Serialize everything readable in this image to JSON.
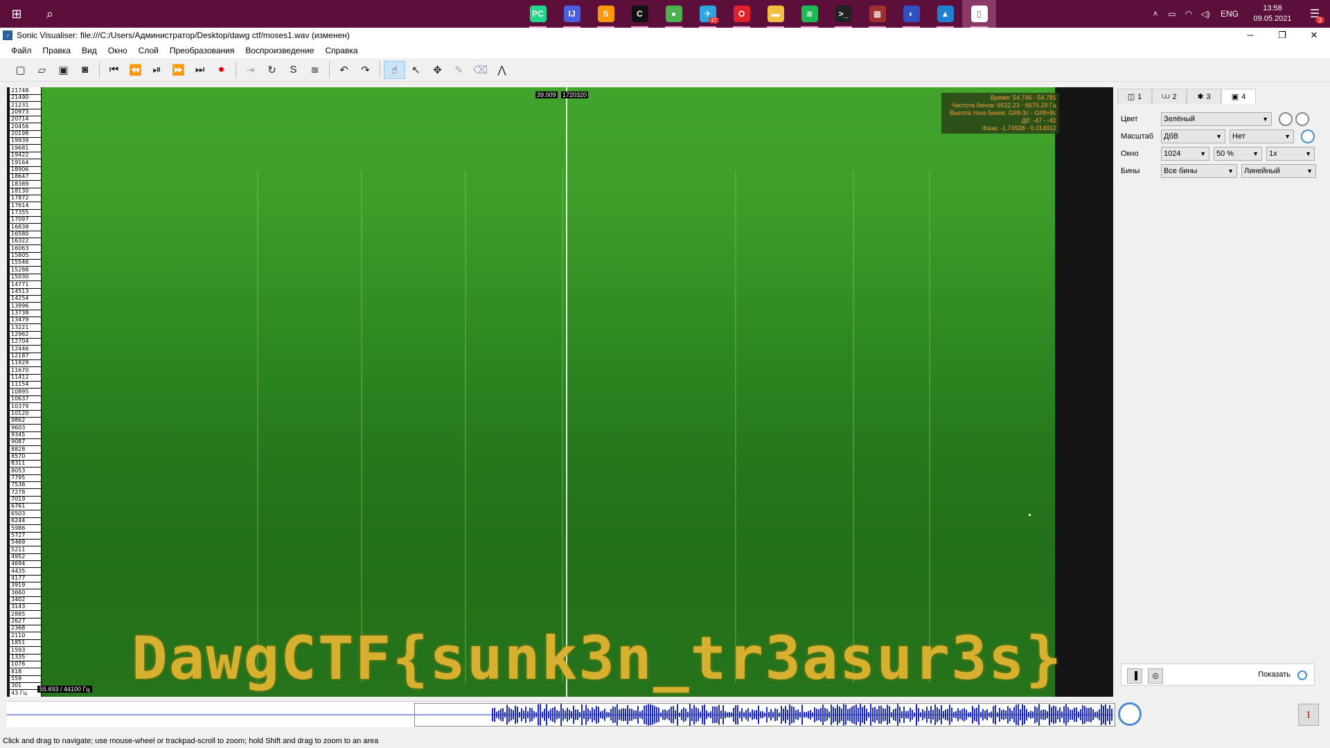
{
  "taskbar": {
    "apps": [
      {
        "name": "pycharm",
        "glyph": "PC",
        "color": "#21d789",
        "badge": ""
      },
      {
        "name": "intellij",
        "glyph": "IJ",
        "color": "#4a5fe0",
        "badge": ""
      },
      {
        "name": "sublime",
        "glyph": "S",
        "color": "#ff9800",
        "badge": ""
      },
      {
        "name": "c-app",
        "glyph": "C",
        "color": "#111111",
        "badge": ""
      },
      {
        "name": "chrome",
        "glyph": "●",
        "color": "#4caf50",
        "badge": ""
      },
      {
        "name": "telegram",
        "glyph": "✈",
        "color": "#2ca5e0",
        "badge": "47"
      },
      {
        "name": "opera",
        "glyph": "O",
        "color": "#e0202a",
        "badge": ""
      },
      {
        "name": "explorer",
        "glyph": "▬",
        "color": "#f0c040",
        "badge": ""
      },
      {
        "name": "spotify",
        "glyph": "≋",
        "color": "#1db954",
        "badge": ""
      },
      {
        "name": "terminal",
        "glyph": ">_",
        "color": "#222222",
        "badge": ""
      },
      {
        "name": "winrar",
        "glyph": "▦",
        "color": "#a03030",
        "badge": ""
      },
      {
        "name": "app-round",
        "glyph": "◐",
        "color": "#3050c0",
        "badge": ""
      },
      {
        "name": "photos",
        "glyph": "▲",
        "color": "#2080d0",
        "badge": ""
      },
      {
        "name": "document",
        "glyph": "▯",
        "color": "#ffffff",
        "badge": ""
      }
    ],
    "lang": "ENG",
    "time": "13:58",
    "date": "09.05.2021",
    "notifications": "3"
  },
  "window": {
    "title": "Sonic Visualiser: file:///C:/Users/Администратор/Desktop/dawg ctf/moses1.wav (изменен)"
  },
  "menu": [
    "Файл",
    "Правка",
    "Вид",
    "Окно",
    "Слой",
    "Преобразования",
    "Воспроизведение",
    "Справка"
  ],
  "spectrogram": {
    "freq_labels": [
      "21748",
      "21490",
      "21231",
      "20973",
      "20714",
      "20456",
      "20198",
      "19939",
      "19681",
      "19422",
      "19164",
      "18906",
      "18647",
      "18389",
      "18130",
      "17872",
      "17614",
      "17355",
      "17097",
      "16838",
      "16580",
      "16322",
      "16063",
      "15805",
      "15546",
      "15288",
      "15030",
      "14771",
      "14513",
      "14254",
      "13996",
      "13738",
      "13479",
      "13221",
      "12962",
      "12704",
      "12446",
      "12187",
      "11929",
      "11670",
      "11412",
      "11154",
      "10895",
      "10637",
      "10379",
      "10120",
      "9862",
      "9603",
      "9345",
      "9087",
      "8828",
      "8570",
      "8311",
      "8053",
      "7795",
      "7536",
      "7278",
      "7019",
      "6761",
      "6503",
      "6244",
      "5986",
      "5727",
      "5469",
      "5211",
      "4952",
      "4694",
      "4435",
      "4177",
      "3919",
      "3660",
      "3402",
      "3143",
      "2885",
      "2627",
      "2368",
      "2110",
      "1851",
      "1593",
      "1335",
      "1076",
      "818",
      "559",
      "301",
      "43 Гц"
    ],
    "time_label": "39.009",
    "sample_label": "1720320",
    "info": [
      "Время: 54.746 - 54.781",
      "Частота бинов: 6632.23 - 6675.29 Гц",
      "Высота тона бинов: G#8-3c - G#8+8c",
      "Дб: -47 - -42",
      "Фаза: -1.74928 - 0.314912"
    ],
    "bottom_info": "55.693 / 44100 Гц",
    "flag_text": "DawgCTF{sunk3n_tr3asur3s}"
  },
  "panel": {
    "tabs": [
      {
        "label": "1",
        "icon": "◫"
      },
      {
        "label": "2",
        "icon": "⩊"
      },
      {
        "label": "3",
        "icon": "✱"
      },
      {
        "label": "4",
        "icon": "▣"
      }
    ],
    "color_label": "Цвет",
    "color_value": "Зелёный",
    "scale_label": "Масштаб",
    "scale_value": "ДбВ",
    "scale_value2": "Нет",
    "window_label": "Окно",
    "window_value": "1024",
    "window_overlap": "50 %",
    "window_mult": "1x",
    "bins_label": "Бины",
    "bins_value": "Все бины",
    "bins_value2": "Линейный",
    "show_label": "Показать"
  },
  "status": "Click and drag to navigate; use mouse-wheel or trackpad-scroll to zoom; hold Shift and drag to zoom to an area"
}
